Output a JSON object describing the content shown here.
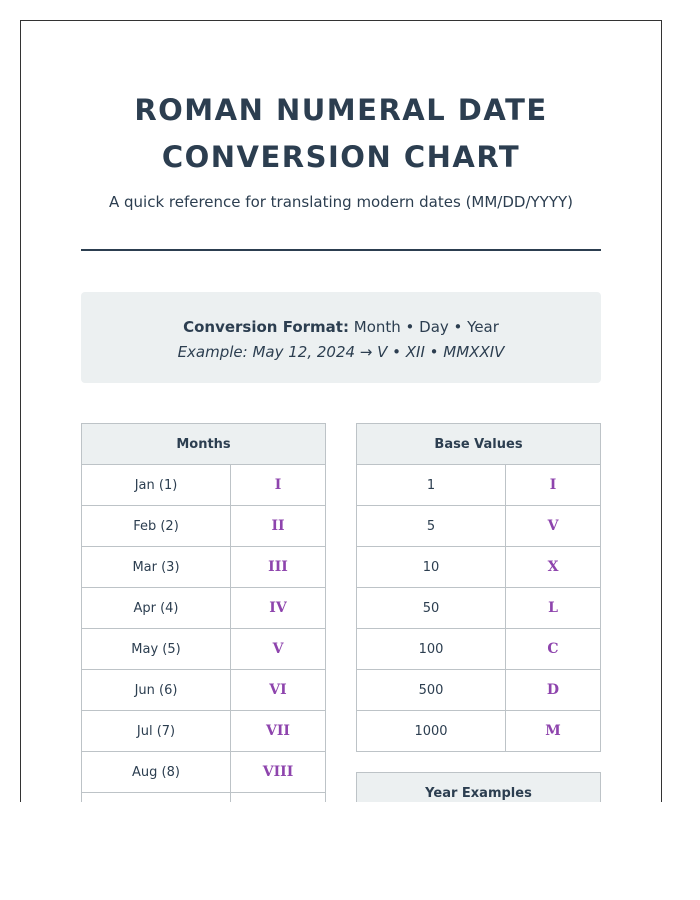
{
  "title": "ROMAN NUMERAL DATE CONVERSION CHART",
  "subtitle": "A quick reference for translating modern dates (MM/DD/YYYY)",
  "format": {
    "label": "Conversion Format:",
    "value": "Month • Day • Year",
    "example": "Example: May 12, 2024 → V • XII • MMXXIV"
  },
  "months": {
    "header": "Months",
    "rows": [
      [
        "Jan (1)",
        "I"
      ],
      [
        "Feb (2)",
        "II"
      ],
      [
        "Mar (3)",
        "III"
      ],
      [
        "Apr (4)",
        "IV"
      ],
      [
        "May (5)",
        "V"
      ],
      [
        "Jun (6)",
        "VI"
      ],
      [
        "Jul (7)",
        "VII"
      ],
      [
        "Aug (8)",
        "VIII"
      ],
      [
        "",
        ""
      ]
    ]
  },
  "base": {
    "header": "Base Values",
    "rows": [
      [
        "1",
        "I"
      ],
      [
        "5",
        "V"
      ],
      [
        "10",
        "X"
      ],
      [
        "50",
        "L"
      ],
      [
        "100",
        "C"
      ],
      [
        "500",
        "D"
      ],
      [
        "1000",
        "M"
      ]
    ]
  },
  "years": {
    "header": "Year Examples"
  },
  "colors": {
    "text": "#2c3e50",
    "numeral": "#8e44ad",
    "panel": "#ecf0f1"
  }
}
